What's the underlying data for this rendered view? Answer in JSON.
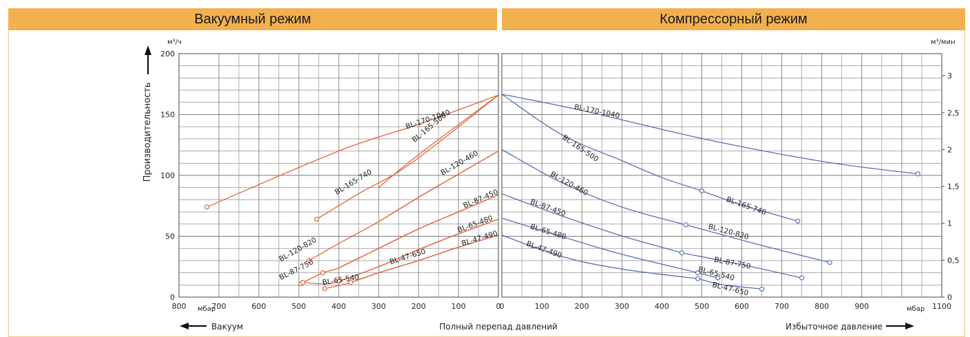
{
  "header": {
    "vacuum_title": "Вакуумный режим",
    "compressor_title": "Компрессорный режим"
  },
  "axes": {
    "left_unit": "м³/ч",
    "right_unit": "м³/мин",
    "y_label": "Производительность",
    "left_x_unit": "мбар",
    "right_x_unit": "мбар",
    "bottom_left": "Вакуум",
    "bottom_center": "Полный перепад давлений",
    "bottom_right": "Избыточное давление"
  },
  "colors": {
    "vacuum": "#e0663a",
    "compressor": "#5a6fb5",
    "header": "#f3b04e",
    "grid": "#7a7a7a"
  },
  "chart_data": [
    {
      "type": "line",
      "title": "Вакуумный режим",
      "xlabel": "мбар",
      "ylabel": "Производительность",
      "y_unit": "м³/ч",
      "x_direction": "reversed",
      "xlim": [
        800,
        0
      ],
      "ylim": [
        0,
        200
      ],
      "x_ticks": [
        800,
        700,
        600,
        500,
        400,
        300,
        200,
        100,
        0
      ],
      "y_ticks": [
        0,
        50,
        100,
        150,
        200
      ],
      "grid": true,
      "series": [
        {
          "name": "BL-170-1040",
          "x": [
            730,
            400,
            200,
            0
          ],
          "y": [
            74,
            120,
            142,
            166
          ],
          "label_x": 230,
          "label_y": 138
        },
        {
          "name": "BL-165-500",
          "x": [
            0,
            200,
            300
          ],
          "y": [
            166,
            117,
            90
          ],
          "label_x": 210,
          "label_y": 127
        },
        {
          "name": "BL-165-740",
          "x": [
            455,
            350,
            250,
            150,
            0
          ],
          "y": [
            64,
            85,
            103,
            127,
            166
          ],
          "label_x": 405,
          "label_y": 84
        },
        {
          "name": "BL-120-460",
          "x": [
            0,
            100,
            200,
            300
          ],
          "y": [
            120,
            101,
            82,
            62
          ],
          "label_x": 140,
          "label_y": 100
        },
        {
          "name": "BL-120-820",
          "x": [
            475,
            400,
            300,
            200,
            100,
            0
          ],
          "y": [
            30,
            44,
            62,
            82,
            101,
            120
          ],
          "label_x": 545,
          "label_y": 29
        },
        {
          "name": "BL-87-450",
          "x": [
            0,
            100,
            200,
            300,
            400
          ],
          "y": [
            84,
            70,
            56,
            40,
            24
          ],
          "label_x": 85,
          "label_y": 73
        },
        {
          "name": "BL-87-750",
          "x": [
            495,
            440,
            400,
            300,
            200,
            100,
            0
          ],
          "y": [
            11,
            20,
            24,
            40,
            56,
            70,
            84
          ],
          "label_x": 545,
          "label_y": 14
        },
        {
          "name": "BL-65-480",
          "x": [
            0,
            100,
            200,
            300,
            400
          ],
          "y": [
            64,
            52,
            39,
            25,
            13
          ],
          "label_x": 100,
          "label_y": 53
        },
        {
          "name": "BL-65-540",
          "x": [
            490,
            440,
            400,
            300,
            200,
            100,
            0
          ],
          "y": [
            12,
            11,
            13,
            25,
            39,
            52,
            64
          ],
          "label_x": 440,
          "label_y": 10
        },
        {
          "name": "BL-47-490",
          "x": [
            0,
            100,
            200,
            300,
            370
          ],
          "y": [
            51,
            41,
            30,
            20,
            12
          ],
          "label_x": 90,
          "label_y": 42
        },
        {
          "name": "BL-47-650",
          "x": [
            435,
            370,
            300,
            200,
            100,
            0
          ],
          "y": [
            7,
            12,
            20,
            30,
            41,
            51
          ],
          "label_x": 270,
          "label_y": 27
        }
      ]
    },
    {
      "type": "line",
      "title": "Компрессорный режим",
      "xlabel": "мбар",
      "ylabel": "Производительность",
      "y_unit": "м³/мин",
      "xlim": [
        0,
        1100
      ],
      "ylim": [
        0,
        3.3
      ],
      "x_ticks": [
        0,
        100,
        200,
        300,
        400,
        500,
        600,
        700,
        800,
        900,
        1100
      ],
      "y_ticks": [
        0,
        0.5,
        1,
        1.5,
        2,
        2.5,
        3
      ],
      "y_tick_labels": [
        "0",
        "0,5",
        "1",
        "1,5",
        "2",
        "2,5",
        "3"
      ],
      "grid": true,
      "series": [
        {
          "name": "BL-170-1040",
          "x": [
            0,
            200,
            500,
            800,
            1040
          ],
          "y": [
            2.75,
            2.53,
            2.15,
            1.84,
            1.67
          ],
          "label_x": 180,
          "label_y": 2.55
        },
        {
          "name": "BL-165-500",
          "x": [
            0,
            150,
            300,
            400,
            500
          ],
          "y": [
            2.75,
            2.2,
            1.85,
            1.62,
            1.44
          ],
          "label_x": 150,
          "label_y": 2.15
        },
        {
          "name": "BL-165-740",
          "x": [
            500,
            600,
            740
          ],
          "y": [
            1.44,
            1.25,
            1.03
          ],
          "label_x": 560,
          "label_y": 1.3
        },
        {
          "name": "BL-120-460",
          "x": [
            0,
            150,
            300,
            460
          ],
          "y": [
            2.0,
            1.55,
            1.22,
            0.98
          ],
          "label_x": 120,
          "label_y": 1.65
        },
        {
          "name": "BL-120-820",
          "x": [
            460,
            650,
            820
          ],
          "y": [
            0.98,
            0.7,
            0.47
          ],
          "label_x": 515,
          "label_y": 0.93
        },
        {
          "name": "BL-87-450",
          "x": [
            0,
            150,
            300,
            450
          ],
          "y": [
            1.4,
            1.1,
            0.83,
            0.6
          ],
          "label_x": 70,
          "label_y": 1.27
        },
        {
          "name": "BL-87-750",
          "x": [
            450,
            600,
            750
          ],
          "y": [
            0.6,
            0.44,
            0.26
          ],
          "label_x": 530,
          "label_y": 0.48
        },
        {
          "name": "BL-65-480",
          "x": [
            0,
            150,
            300,
            490
          ],
          "y": [
            1.07,
            0.82,
            0.58,
            0.33
          ],
          "label_x": 70,
          "label_y": 0.93
        },
        {
          "name": "BL-65-540",
          "x": [
            490,
            540
          ],
          "y": [
            0.33,
            0.26
          ],
          "label_x": 490,
          "label_y": 0.35
        },
        {
          "name": "BL-47-490",
          "x": [
            0,
            150,
            300,
            490
          ],
          "y": [
            0.84,
            0.55,
            0.38,
            0.25
          ],
          "label_x": 60,
          "label_y": 0.7
        },
        {
          "name": "BL-47-650",
          "x": [
            490,
            550,
            650
          ],
          "y": [
            0.25,
            0.17,
            0.11
          ],
          "label_x": 525,
          "label_y": 0.14
        }
      ],
      "markers": [
        {
          "x": 1040,
          "y": 1.67
        },
        {
          "x": 500,
          "y": 1.44
        },
        {
          "x": 740,
          "y": 1.03
        },
        {
          "x": 460,
          "y": 0.98
        },
        {
          "x": 820,
          "y": 0.47
        },
        {
          "x": 450,
          "y": 0.6
        },
        {
          "x": 750,
          "y": 0.26
        },
        {
          "x": 490,
          "y": 0.33
        },
        {
          "x": 540,
          "y": 0.26
        },
        {
          "x": 490,
          "y": 0.25
        },
        {
          "x": 650,
          "y": 0.11
        }
      ]
    }
  ],
  "vacuum_markers": [
    {
      "x": 730,
      "y": 74
    },
    {
      "x": 455,
      "y": 64
    },
    {
      "x": 475,
      "y": 30
    },
    {
      "x": 495,
      "y": 11
    },
    {
      "x": 490,
      "y": 12
    },
    {
      "x": 440,
      "y": 20
    },
    {
      "x": 400,
      "y": 13
    },
    {
      "x": 435,
      "y": 7
    },
    {
      "x": 370,
      "y": 12
    }
  ]
}
